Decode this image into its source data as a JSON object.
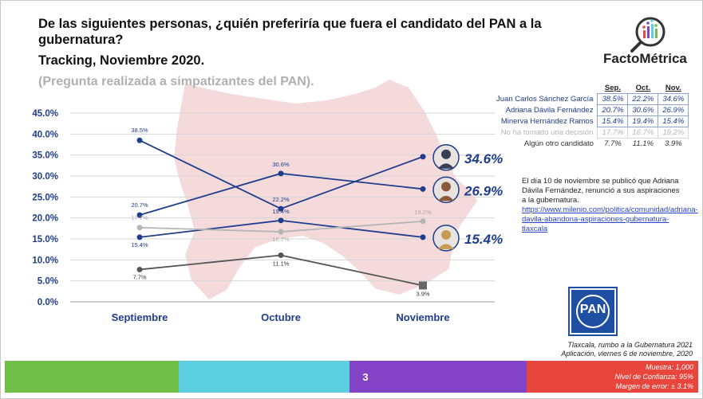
{
  "header": {
    "title": "De las siguientes personas, ¿quién preferiría que fuera el candidato del  PAN a la gubernatura?",
    "subtitle": "Tracking, Noviembre 2020.",
    "note": "(Pregunta realizada a simpatizantes del PAN).",
    "brand": "FactoMétrica"
  },
  "chart_data": {
    "type": "line",
    "categories": [
      "Septiembre",
      "Octubre",
      "Noviembre"
    ],
    "ylim": [
      0,
      45
    ],
    "yticks": [
      "0.0%",
      "5.0%",
      "10.0%",
      "15.0%",
      "20.0%",
      "25.0%",
      "30.0%",
      "35.0%",
      "40.0%",
      "45.0%"
    ],
    "grid": true,
    "series": [
      {
        "name": "Juan Carlos Sánchez García",
        "values": [
          38.5,
          22.2,
          34.6
        ],
        "labels": [
          "38.5%",
          "22.2%",
          ""
        ],
        "color": "#1f3d8c",
        "end_label": "34.6%"
      },
      {
        "name": "Adriana Dávila Fernández",
        "values": [
          20.7,
          30.6,
          26.9
        ],
        "labels": [
          "20.7%",
          "30.6%",
          ""
        ],
        "color": "#1f3d8c",
        "end_label": "26.9%"
      },
      {
        "name": "Minerva Hernández Ramos",
        "values": [
          15.4,
          19.4,
          15.4
        ],
        "labels": [
          "15.4%",
          "19.4%",
          ""
        ],
        "color": "#1f3d8c",
        "end_label": "15.4%"
      },
      {
        "name": "No ha tomado una decisión",
        "values": [
          17.7,
          16.7,
          19.2
        ],
        "labels": [
          "17.7%",
          "16.7%",
          "19.2%"
        ],
        "color": "#b5b5b5",
        "end_label": ""
      },
      {
        "name": "Algún otro candidato",
        "values": [
          7.7,
          11.1,
          3.9
        ],
        "labels": [
          "7.7%",
          "11.1%",
          "3.9%"
        ],
        "color": "#555555",
        "end_label": ""
      }
    ]
  },
  "table": {
    "headers": [
      "Sep.",
      "Oct.",
      "Nov."
    ],
    "rows": [
      {
        "name": "Juan Carlos Sánchez García",
        "values": [
          "38.5%",
          "22.2%",
          "34.6%"
        ]
      },
      {
        "name": "Adriana  Dávila Fernández",
        "values": [
          "20.7%",
          "30.6%",
          "26.9%"
        ]
      },
      {
        "name": "Minerva  Hernández Ramos",
        "values": [
          "15.4%",
          "19.4%",
          "15.4%"
        ]
      },
      {
        "name": "No ha tomado una decisión",
        "values": [
          "17.7%",
          "16.7%",
          "19.2%"
        ]
      },
      {
        "name": "Algún otro candidato",
        "values": [
          "7.7%",
          "11.1%",
          "3.9%"
        ]
      }
    ]
  },
  "info": {
    "text": "El día 10 de  noviembre se publicó que Adriana Dávila Fernández, renunció a sus aspiraciones a la gubernatura.",
    "link": "https://www.milenio.com/politica/comunidad/adriana-davila-abandona-aspiraciones-gubernatura-tlaxcala"
  },
  "logo": {
    "text": "PAN"
  },
  "footer": {
    "line1": "Tlaxcala, rumbo a la Gubernatura 2021",
    "line2": "Aplicación, viernes 6 de noviembre, 2020",
    "sample": "Muestra:  1,000",
    "confidence": "Nivel de Confianza:  95%",
    "margin": "Margen de error: ± 3.1%",
    "page": "3"
  },
  "colors": {
    "primary": "#1f3d8c",
    "undecided": "#b5b5b5",
    "other": "#555555",
    "map": "#f2d4d4"
  }
}
